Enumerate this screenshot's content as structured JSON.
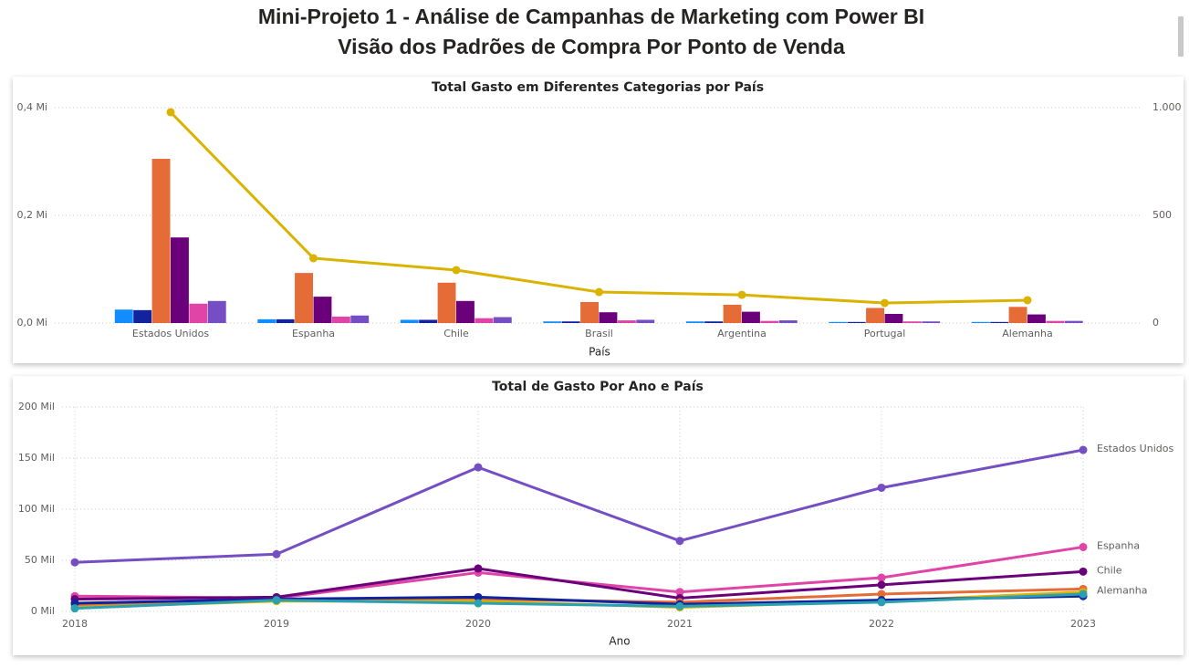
{
  "header": {
    "title": "Mini-Projeto 1 -  Análise de Campanhas de Marketing com Power BI",
    "subtitle": "Visão dos Padrões de Compra Por Ponto de Venda"
  },
  "chart_data": [
    {
      "type": "bar",
      "title": "Total Gasto em Diferentes Categorias por País",
      "x_label": "País",
      "categories": [
        "Estados Unidos",
        "Espanha",
        "Chile",
        "Brasil",
        "Argentina",
        "Portugal",
        "Alemanha"
      ],
      "series": [
        {
          "color": "#118dff",
          "values": [
            0.025,
            0.007,
            0.006,
            0.003,
            0.003,
            0.002,
            0.002
          ]
        },
        {
          "color": "#12239e",
          "values": [
            0.024,
            0.007,
            0.006,
            0.003,
            0.003,
            0.002,
            0.002
          ]
        },
        {
          "color": "#e66c37",
          "values": [
            0.305,
            0.093,
            0.075,
            0.039,
            0.034,
            0.028,
            0.03
          ]
        },
        {
          "color": "#6b007b",
          "values": [
            0.159,
            0.049,
            0.041,
            0.02,
            0.021,
            0.017,
            0.016
          ]
        },
        {
          "color": "#e044a7",
          "values": [
            0.036,
            0.012,
            0.009,
            0.005,
            0.004,
            0.003,
            0.004
          ]
        },
        {
          "color": "#744ec2",
          "values": [
            0.041,
            0.014,
            0.011,
            0.006,
            0.005,
            0.003,
            0.004
          ]
        },
        {
          "type": "line",
          "axis": "y2",
          "color": "#d9b300",
          "values": [
            979,
            301,
            246,
            144,
            131,
            93,
            106
          ]
        }
      ],
      "ylim": [
        0,
        0.4
      ],
      "yticks": [
        {
          "value": 0,
          "label": "0,0 Mi"
        },
        {
          "value": 0.2,
          "label": "0,2 Mi"
        },
        {
          "value": 0.4,
          "label": "0,4 Mi"
        }
      ],
      "y2lim": [
        0,
        1000
      ],
      "y2ticks": [
        0,
        500,
        {
          "value": 1000,
          "label": "1.000"
        }
      ],
      "grid": true
    },
    {
      "type": "line",
      "title": "Total de Gasto Por Ano e País",
      "x_label": "Ano",
      "categories": [
        "2018",
        "2019",
        "2020",
        "2021",
        "2022",
        "2023"
      ],
      "series": [
        {
          "name": "Estados Unidos",
          "color": "#744ec2",
          "values": [
            48,
            56,
            141,
            69,
            121,
            158
          ]
        },
        {
          "name": "Espanha",
          "color": "#e044a7",
          "values": [
            15,
            13,
            38,
            19,
            33,
            63
          ]
        },
        {
          "name": "Chile",
          "color": "#6b007b",
          "values": [
            12,
            14,
            42,
            13,
            26,
            39
          ]
        },
        {
          "color": "#e66c37",
          "values": [
            6,
            12,
            12,
            9,
            17,
            22
          ]
        },
        {
          "name": "Alemanha",
          "color": "#d9b300",
          "values": [
            4,
            10,
            10,
            4,
            10,
            19
          ]
        },
        {
          "color": "#12239e",
          "values": [
            8,
            12,
            14,
            7,
            11,
            15
          ]
        },
        {
          "color": "#2aa0b0",
          "values": [
            3,
            11,
            8,
            5,
            9,
            17
          ]
        }
      ],
      "ylim": [
        0,
        200
      ],
      "yticks": [
        {
          "value": 0,
          "label": "0 Mil"
        },
        {
          "value": 50,
          "label": "50 Mil"
        },
        {
          "value": 100,
          "label": "100 Mil"
        },
        {
          "value": 150,
          "label": "150 Mil"
        },
        {
          "value": 200,
          "label": "200 Mil"
        }
      ],
      "grid": true
    }
  ]
}
